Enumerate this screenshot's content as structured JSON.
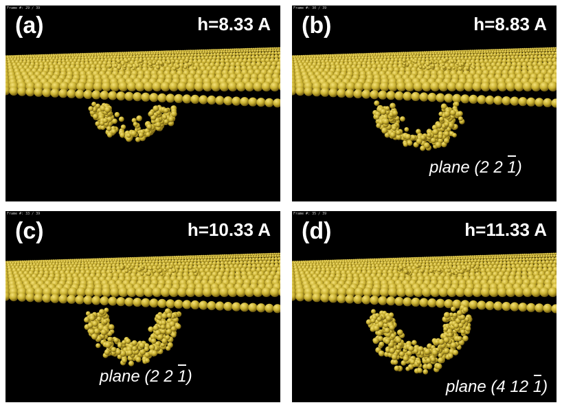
{
  "panels": [
    {
      "tag": "(a)",
      "height": "h=8.33 A",
      "frame": "Frame #: 29 / 39",
      "plane": null
    },
    {
      "tag": "(b)",
      "height": "h=8.83 A",
      "frame": "Frame #: 30 / 39",
      "plane": {
        "prefix": "plane (2 2 ",
        "bar_digit": "1",
        "suffix": ")"
      }
    },
    {
      "tag": "(c)",
      "height": "h=10.33 A",
      "frame": "Frame #: 33 / 39",
      "plane": {
        "prefix": "plane (2 2 ",
        "bar_digit": "1",
        "suffix": ")"
      }
    },
    {
      "tag": "(d)",
      "height": "h=11.33 A",
      "frame": "Frame #: 35 / 39",
      "plane": {
        "prefix": "plane (4 12 ",
        "bar_digit": "1",
        "suffix": ")"
      }
    }
  ],
  "colors": {
    "atom": "#c8b030",
    "atom_highlight": "#f5e27a",
    "atom_shadow": "#6e5a10",
    "background": "#000000"
  }
}
